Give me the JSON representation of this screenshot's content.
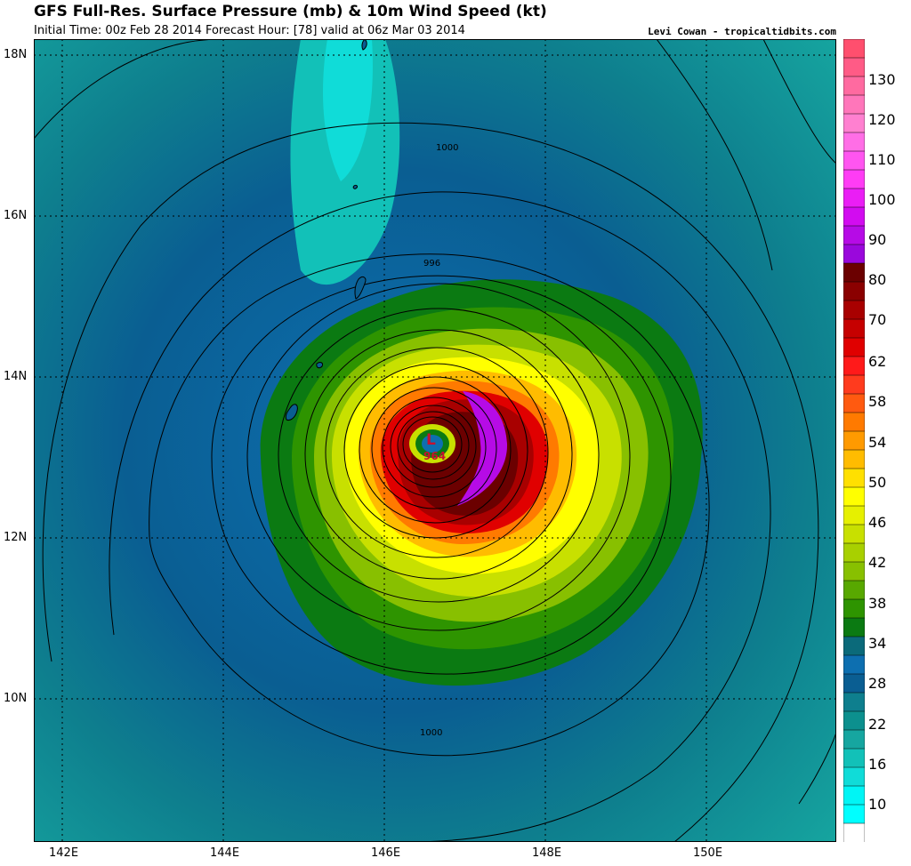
{
  "header": {
    "title": "GFS Full-Res. Surface Pressure (mb) & 10m Wind Speed (kt)",
    "subtitle": "Initial Time: 00z Feb 28 2014 Forecast Hour: [78] valid at 06z Mar 03 2014",
    "credit": "Levi Cowan - tropicaltidbits.com"
  },
  "map": {
    "lat_labels": [
      "18N",
      "16N",
      "14N",
      "12N",
      "10N"
    ],
    "lon_labels": [
      "142E",
      "144E",
      "146E",
      "148E",
      "150E"
    ],
    "low_center": {
      "symbol": "L",
      "pressure": "964"
    },
    "isobar_labels": [
      "1000",
      "996",
      "1000"
    ]
  },
  "colorbar": {
    "labels": [
      "130",
      "120",
      "110",
      "100",
      "90",
      "80",
      "70",
      "62",
      "58",
      "54",
      "50",
      "46",
      "42",
      "38",
      "34",
      "28",
      "22",
      "16",
      "10"
    ],
    "colors": [
      "#ff4f6e",
      "#ff5b86",
      "#ff6aa0",
      "#ff76ba",
      "#ff80d0",
      "#ff6ee6",
      "#ff55f0",
      "#ff3cf5",
      "#ea1ef5",
      "#d20cf0",
      "#b60be6",
      "#9a08dc",
      "#6b0000",
      "#8a0000",
      "#a80000",
      "#c60000",
      "#e00000",
      "#ff1a1a",
      "#ff3b1e",
      "#ff5a10",
      "#ff7a00",
      "#ff9a00",
      "#ffbc00",
      "#ffe000",
      "#ffff00",
      "#e6f000",
      "#c8e000",
      "#a8d000",
      "#88c000",
      "#58a800",
      "#2e9400",
      "#0b7a12",
      "#0b6a7a",
      "#0d6fb0",
      "#0a5e92",
      "#0e7f8e",
      "#0c908e",
      "#16a6a0",
      "#12c1b8",
      "#10dcd8",
      "#00f5f5",
      "#00ffff",
      "#ffffff"
    ]
  }
}
